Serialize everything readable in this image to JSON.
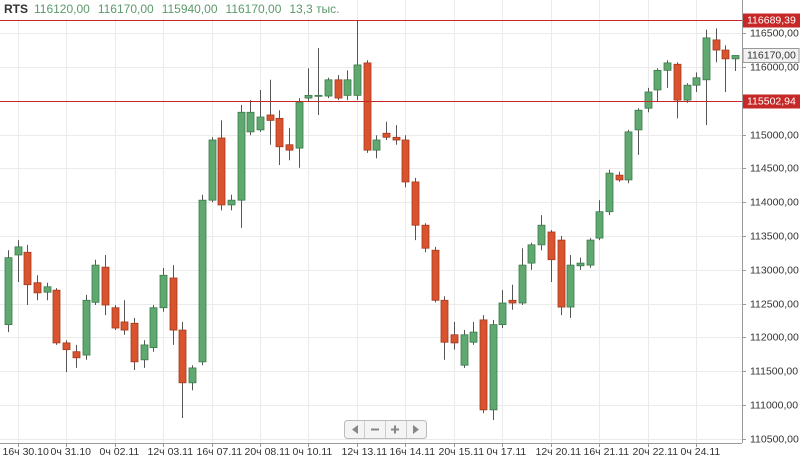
{
  "chart_data": {
    "type": "candlestick",
    "title": "RTS",
    "header": [
      "116120,00",
      "116170,00",
      "115940,00",
      "116170,00",
      "13,3 тыс."
    ],
    "categories": [
      null,
      "16ч 30.10",
      null,
      null,
      null,
      null,
      "0ч 31.10",
      null,
      null,
      null,
      null,
      "0ч 02.11",
      null,
      null,
      null,
      null,
      "12ч 03.11",
      null,
      null,
      null,
      null,
      "16ч 07.11",
      null,
      null,
      null,
      null,
      "20ч 08.11",
      null,
      null,
      null,
      null,
      "0ч 10.11",
      null,
      null,
      null,
      null,
      "12ч 13.11",
      null,
      null,
      null,
      null,
      "16ч 14.11",
      null,
      null,
      null,
      null,
      "20ч 15.11",
      null,
      null,
      null,
      null,
      "0ч 17.11",
      null,
      null,
      null,
      null,
      "12ч 20.11",
      null,
      null,
      null,
      null,
      "16ч 21.11",
      null,
      null,
      null,
      null,
      "20ч 22.11",
      null,
      null,
      null,
      null,
      "0ч 24.11",
      null,
      null,
      null,
      null
    ],
    "open": [
      112190,
      113220,
      113260,
      112810,
      112670,
      112700,
      111920,
      111790,
      111740,
      112520,
      113040,
      112440,
      112230,
      112210,
      111670,
      111850,
      112440,
      112880,
      112110,
      111330,
      111640,
      114030,
      114950,
      113960,
      114030,
      115040,
      115070,
      115290,
      115240,
      114850,
      114800,
      115540,
      115570,
      115570,
      115810,
      115580,
      115580,
      116060,
      114770,
      115020,
      114960,
      114920,
      114300,
      113660,
      113290,
      112550,
      112040,
      111590,
      111930,
      112260,
      110930,
      112190,
      112550,
      112510,
      113100,
      113370,
      113560,
      113440,
      112450,
      113060,
      113070,
      113470,
      113860,
      114400,
      114330,
      115070,
      115390,
      115660,
      115950,
      116040,
      115510,
      115730,
      115810,
      116400,
      116250,
      116120
    ],
    "high": [
      113290,
      113440,
      113370,
      112920,
      112810,
      112730,
      111960,
      111890,
      112630,
      113150,
      113220,
      112480,
      112550,
      112290,
      111960,
      112480,
      113030,
      113070,
      112230,
      111590,
      114110,
      114960,
      115210,
      114110,
      115440,
      115510,
      115660,
      115810,
      115360,
      115100,
      115540,
      115980,
      116280,
      115840,
      115880,
      115950,
      116690,
      116100,
      114990,
      115190,
      115140,
      114990,
      114360,
      113690,
      113340,
      112610,
      112230,
      112110,
      112230,
      112330,
      112260,
      112700,
      112780,
      113320,
      113400,
      113810,
      113590,
      113500,
      113220,
      113180,
      113470,
      114030,
      114480,
      114450,
      115070,
      115390,
      115690,
      115980,
      116100,
      116070,
      115760,
      115920,
      116550,
      116570,
      116320,
      116170
    ],
    "low": [
      112080,
      112820,
      112480,
      112550,
      112550,
      111890,
      111490,
      111550,
      111670,
      112480,
      112330,
      112110,
      112040,
      111520,
      111550,
      111790,
      112380,
      111890,
      110810,
      111220,
      111590,
      114000,
      113880,
      113880,
      113620,
      114990,
      115040,
      114850,
      114550,
      114620,
      114510,
      115480,
      115290,
      115540,
      115510,
      115510,
      115510,
      114730,
      114650,
      114920,
      114850,
      114220,
      113440,
      113260,
      112520,
      111670,
      111820,
      111550,
      111890,
      110880,
      110780,
      112140,
      112410,
      112480,
      113000,
      113290,
      112820,
      112330,
      112290,
      113000,
      113030,
      113440,
      113810,
      114300,
      114280,
      114700,
      115330,
      115480,
      115690,
      115240,
      115470,
      115630,
      115140,
      116070,
      115630,
      115940
    ],
    "close": [
      113180,
      113340,
      112780,
      112660,
      112750,
      111920,
      111820,
      111700,
      112550,
      113070,
      112480,
      112140,
      112110,
      111640,
      111890,
      112440,
      112920,
      112110,
      111330,
      111550,
      114030,
      114920,
      113960,
      114030,
      115330,
      115330,
      115260,
      115210,
      114820,
      114770,
      115480,
      115580,
      115580,
      115810,
      115540,
      115810,
      116030,
      114770,
      114920,
      114960,
      114920,
      114300,
      113660,
      113320,
      112550,
      111930,
      111920,
      112040,
      112080,
      110930,
      112190,
      112510,
      112510,
      113070,
      113370,
      113660,
      113150,
      112450,
      113070,
      113100,
      113440,
      113860,
      114430,
      114330,
      115040,
      115360,
      115630,
      115950,
      116060,
      115510,
      115730,
      115840,
      116430,
      116250,
      116120,
      116170
    ],
    "up_color": "#5fa870",
    "down_color": "#d9532f",
    "ylim": [
      110440,
      116990
    ],
    "yticks": [
      {
        "value": 110500,
        "label": "110500,00"
      },
      {
        "value": 111000,
        "label": "111000,00"
      },
      {
        "value": 111500,
        "label": "111500,00"
      },
      {
        "value": 112000,
        "label": "112000,00"
      },
      {
        "value": 112500,
        "label": "112500,00"
      },
      {
        "value": 113000,
        "label": "113000,00"
      },
      {
        "value": 113500,
        "label": "113500,00"
      },
      {
        "value": 114000,
        "label": "114000,00"
      },
      {
        "value": 114500,
        "label": "114500,00"
      },
      {
        "value": 115000,
        "label": "115000,00"
      },
      {
        "value": 115500,
        "label": "115500,00"
      },
      {
        "value": 116000,
        "label": "116000,00"
      },
      {
        "value": 116500,
        "label": "116500,00"
      }
    ],
    "levels": [
      {
        "value": 116689.39,
        "label": "116689,39"
      },
      {
        "value": 115502.94,
        "label": "115502,94"
      }
    ],
    "level_color": "#c62828",
    "grid": true
  }
}
